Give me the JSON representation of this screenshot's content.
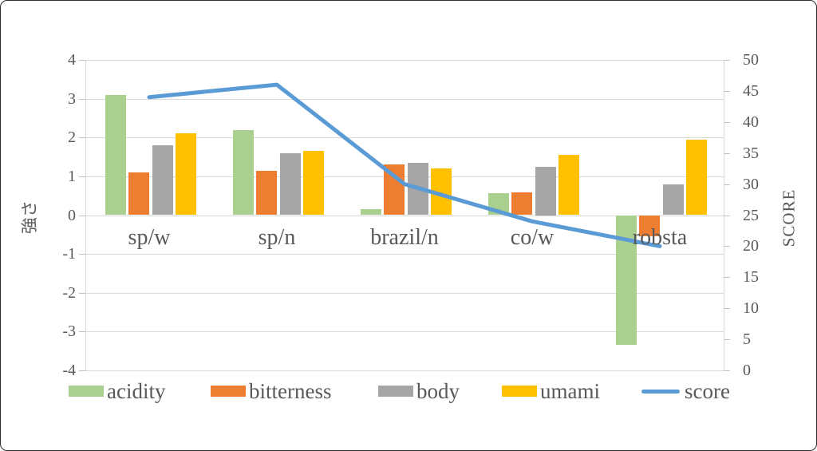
{
  "chart_data": {
    "type": "combo-bar-line",
    "title": "",
    "categories": [
      "sp/w",
      "sp/n",
      "brazil/n",
      "co/w",
      "robsta"
    ],
    "series": [
      {
        "name": "acidity",
        "type": "bar",
        "axis": "left",
        "color": "#A9D08E",
        "values": [
          3.1,
          2.2,
          0.15,
          0.57,
          -3.35
        ]
      },
      {
        "name": "bitterness",
        "type": "bar",
        "axis": "left",
        "color": "#ED7D31",
        "values": [
          1.1,
          1.15,
          1.3,
          0.58,
          -0.55
        ]
      },
      {
        "name": "body",
        "type": "bar",
        "axis": "left",
        "color": "#A5A5A5",
        "values": [
          1.8,
          1.6,
          1.35,
          1.25,
          0.8
        ]
      },
      {
        "name": "umami",
        "type": "bar",
        "axis": "left",
        "color": "#FFC000",
        "values": [
          2.1,
          1.65,
          1.2,
          1.55,
          1.95
        ]
      },
      {
        "name": "score",
        "type": "line",
        "axis": "right",
        "color": "#5B9BD5",
        "values": [
          44,
          46,
          30,
          24,
          20
        ]
      }
    ],
    "ylabel_left": "強さ",
    "ylabel_right": "SCORE",
    "left_axis": {
      "min": -4,
      "max": 4,
      "ticks": [
        4,
        3,
        2,
        1,
        0,
        -1,
        -2,
        -3,
        -4
      ]
    },
    "right_axis": {
      "min": 0,
      "max": 50,
      "ticks": [
        50,
        45,
        40,
        35,
        30,
        25,
        20,
        15,
        10,
        5,
        0
      ]
    },
    "grid": true,
    "legend_position": "bottom",
    "colors": {
      "gridline": "#d9d9d9",
      "tick_text": "#595959",
      "category_text": "#595959",
      "line": "#5B9BD5"
    }
  },
  "layout_text": {
    "legend_labels": [
      "acidity",
      "bitterness",
      "body",
      "umami",
      "score"
    ]
  }
}
